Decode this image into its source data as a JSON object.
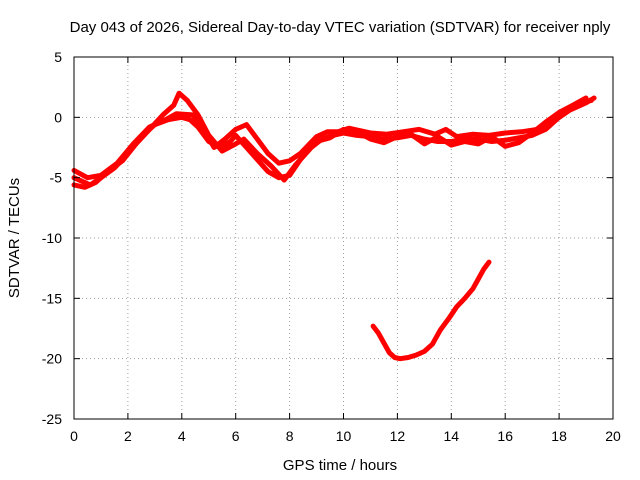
{
  "chart_data": {
    "type": "line",
    "title": "Day 043 of 2026, Sidereal Day-to-day VTEC variation (SDTVAR) for receiver nply",
    "xlabel": "GPS time / hours",
    "ylabel": "SDTVAR / TECUs",
    "xlim": [
      0,
      20
    ],
    "ylim": [
      -25,
      5
    ],
    "xticks": [
      "0",
      "2",
      "4",
      "6",
      "8",
      "10",
      "12",
      "14",
      "16",
      "18",
      "20"
    ],
    "yticks": [
      "5",
      "0",
      "-5",
      "-10",
      "-15",
      "-20",
      "-25"
    ],
    "grid": true,
    "color": "#ff0000",
    "series": [
      {
        "name": "main",
        "x": [
          0.0,
          0.3,
          0.6,
          1.0,
          1.5,
          2.0,
          2.5,
          3.0,
          3.5,
          4.0,
          4.3,
          4.6,
          5.0,
          5.4,
          5.8,
          6.0,
          6.4,
          6.8,
          7.2,
          7.6,
          8.0,
          8.4,
          8.8,
          9.2,
          9.6,
          10.0,
          10.5,
          11.0,
          11.5,
          12.0,
          12.5,
          13.0,
          13.5,
          14.0,
          14.5,
          15.0,
          15.5,
          16.0,
          16.5,
          17.0,
          17.5,
          18.0,
          18.5,
          19.0,
          19.2
        ],
        "y": [
          -5.0,
          -5.3,
          -5.6,
          -5.0,
          -4.2,
          -3.0,
          -1.6,
          -0.6,
          -0.2,
          0.0,
          -0.2,
          -0.8,
          -2.0,
          -2.5,
          -2.0,
          -1.5,
          -2.5,
          -3.5,
          -4.5,
          -5.0,
          -4.8,
          -3.5,
          -2.5,
          -1.8,
          -1.5,
          -1.3,
          -1.5,
          -1.6,
          -1.8,
          -1.7,
          -1.5,
          -1.8,
          -2.0,
          -2.0,
          -1.8,
          -1.8,
          -2.0,
          -1.9,
          -1.7,
          -1.5,
          -1.0,
          0.0,
          0.8,
          1.3,
          1.4
        ]
      },
      {
        "name": "offset",
        "x": [
          0.0,
          0.4,
          0.8,
          1.2,
          1.8,
          2.3,
          2.8,
          3.3,
          3.7,
          3.9,
          4.2,
          4.6,
          5.0,
          5.5,
          6.0,
          6.3,
          6.8,
          7.3,
          7.8,
          8.2,
          8.6,
          9.0,
          9.5,
          10.0,
          10.5,
          11.0,
          11.5,
          12.0,
          12.5,
          13.0,
          13.5,
          14.0,
          14.5,
          15.0,
          15.5,
          16.0,
          16.5,
          17.0,
          17.5,
          18.0,
          18.5,
          19.0
        ],
        "y": [
          -5.6,
          -5.8,
          -5.4,
          -4.6,
          -3.6,
          -2.2,
          -1.0,
          0.2,
          1.0,
          2.0,
          1.4,
          0.2,
          -1.5,
          -2.8,
          -2.2,
          -1.8,
          -3.0,
          -4.0,
          -5.2,
          -4.0,
          -3.0,
          -2.0,
          -1.7,
          -1.0,
          -1.2,
          -1.8,
          -2.1,
          -1.6,
          -1.4,
          -2.2,
          -1.6,
          -2.3,
          -2.0,
          -2.2,
          -1.6,
          -2.4,
          -2.1,
          -1.3,
          -0.4,
          0.4,
          1.0,
          1.6
        ]
      },
      {
        "name": "third",
        "x": [
          0.0,
          0.5,
          1.0,
          1.6,
          2.2,
          2.8,
          3.4,
          3.8,
          4.4,
          4.8,
          5.2,
          5.6,
          6.0,
          6.4,
          6.8,
          7.2,
          7.6,
          8.0,
          8.4,
          9.0,
          9.4,
          9.8,
          10.2,
          11.0,
          11.6,
          12.2,
          12.8,
          13.4,
          13.8,
          14.2,
          14.8,
          15.4,
          16.0,
          16.6,
          17.2,
          17.8,
          18.4,
          19.0,
          19.3
        ],
        "y": [
          -4.4,
          -5.0,
          -4.8,
          -3.8,
          -2.2,
          -0.8,
          -0.2,
          0.3,
          0.2,
          -1.0,
          -2.5,
          -1.8,
          -1.0,
          -0.6,
          -1.8,
          -3.0,
          -3.8,
          -3.6,
          -3.0,
          -1.6,
          -1.2,
          -1.2,
          -0.9,
          -1.3,
          -1.4,
          -1.2,
          -1.0,
          -1.4,
          -1.0,
          -1.6,
          -1.4,
          -1.5,
          -1.3,
          -1.2,
          -1.0,
          -0.3,
          0.6,
          1.2,
          1.6
        ]
      },
      {
        "name": "low-arc",
        "x": [
          11.1,
          11.3,
          11.5,
          11.7,
          11.9,
          12.1,
          12.4,
          12.7,
          13.0,
          13.3,
          13.6,
          13.9,
          14.2,
          14.5,
          14.8,
          15.0,
          15.2,
          15.4
        ],
        "y": [
          -17.3,
          -17.9,
          -18.7,
          -19.5,
          -19.9,
          -20.0,
          -19.9,
          -19.7,
          -19.4,
          -18.8,
          -17.6,
          -16.7,
          -15.7,
          -15.0,
          -14.2,
          -13.4,
          -12.6,
          -12.0
        ]
      }
    ]
  }
}
